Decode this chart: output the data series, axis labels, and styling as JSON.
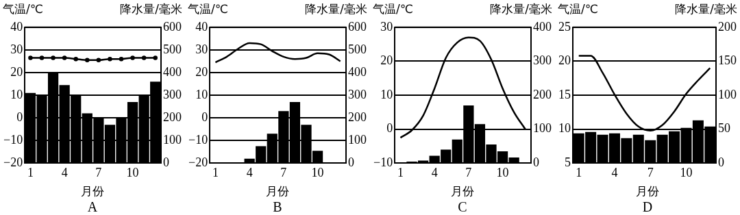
{
  "chart_data": [
    {
      "type": "bar",
      "title": "A",
      "xlabel": "月份",
      "ylabel": "气温/℃",
      "y2label": "降水量/毫米",
      "categories": [
        "1",
        null,
        null,
        "4",
        null,
        null,
        "7",
        null,
        null,
        "10",
        null,
        null
      ],
      "grid": "y",
      "marker": "circle",
      "ylim": [
        -20,
        40
      ],
      "yticks": [
        -20,
        -10,
        0,
        10,
        20,
        30,
        40
      ],
      "y2lim": [
        0,
        600
      ],
      "y2ticks": [
        0,
        100,
        200,
        300,
        400,
        500,
        600
      ],
      "series": [
        {
          "axis": "y2",
          "color": "#000000",
          "values": [
            310,
            300,
            400,
            345,
            300,
            220,
            200,
            170,
            200,
            270,
            300,
            360
          ]
        },
        {
          "type": "line",
          "color": "#000000",
          "values": [
            26.5,
            26.5,
            26.5,
            26.5,
            26,
            25.5,
            25.5,
            26,
            26,
            26.5,
            26.5,
            26.5
          ]
        }
      ]
    },
    {
      "type": "bar",
      "title": "B",
      "xlabel": "月份",
      "ylabel": "气温/℃",
      "y2label": "降水量/毫米",
      "categories": [
        "1",
        null,
        null,
        "4",
        null,
        null,
        "7",
        null,
        null,
        "10",
        null,
        null
      ],
      "grid": "y",
      "ylim": [
        -20,
        40
      ],
      "yticks": [
        -20,
        -10,
        0,
        10,
        20,
        30,
        40
      ],
      "y2lim": [
        0,
        600
      ],
      "y2ticks": [
        0,
        100,
        200,
        300,
        400,
        500,
        600
      ],
      "series": [
        {
          "axis": "y2",
          "color": "#000000",
          "values": [
            0,
            3,
            3,
            20,
            75,
            130,
            230,
            270,
            170,
            55,
            3,
            0
          ]
        },
        {
          "type": "line",
          "color": "#000000",
          "values": [
            24.5,
            27,
            30.5,
            33,
            32.5,
            29.5,
            27,
            26,
            26.5,
            28.5,
            28,
            25
          ]
        }
      ]
    },
    {
      "type": "bar",
      "title": "C",
      "xlabel": "月份",
      "ylabel": "气温/℃",
      "y2label": "降水量/毫米",
      "categories": [
        "1",
        null,
        null,
        "4",
        null,
        null,
        "7",
        null,
        null,
        "10",
        null,
        null
      ],
      "grid": "y",
      "ylim": [
        -10,
        30
      ],
      "yticks": [
        -10,
        0,
        10,
        20,
        30
      ],
      "y2lim": [
        0,
        400
      ],
      "y2ticks": [
        0,
        100,
        200,
        300,
        400
      ],
      "series": [
        {
          "axis": "y2",
          "color": "#000000",
          "values": [
            1,
            5,
            8,
            22,
            40,
            70,
            170,
            115,
            55,
            35,
            17,
            3
          ]
        },
        {
          "type": "line",
          "color": "#000000",
          "values": [
            -2.5,
            -0.3,
            4,
            12,
            21,
            25.5,
            27,
            26,
            20.5,
            12,
            5,
            0
          ]
        }
      ]
    },
    {
      "type": "bar",
      "title": "D",
      "xlabel": "月份",
      "ylabel": "气温/℃",
      "y2label": "降水量/毫米",
      "categories": [
        "1",
        null,
        null,
        "4",
        null,
        null,
        "7",
        null,
        null,
        "10",
        null,
        null
      ],
      "grid": "y",
      "ylim": [
        5,
        25
      ],
      "yticks": [
        5,
        10,
        15,
        20,
        25
      ],
      "y2lim": [
        0,
        200
      ],
      "y2ticks": [
        0,
        50,
        100,
        150,
        200
      ],
      "series": [
        {
          "axis": "y2",
          "color": "#000000",
          "values": [
            44,
            46,
            42,
            44,
            37,
            42,
            34,
            42,
            47,
            52,
            63,
            54
          ]
        },
        {
          "type": "line",
          "color": "#000000",
          "values": [
            20.8,
            20.8,
            18.3,
            15.1,
            12.3,
            10.4,
            9.8,
            10.6,
            12.6,
            15.2,
            17.2,
            19
          ]
        }
      ]
    }
  ]
}
